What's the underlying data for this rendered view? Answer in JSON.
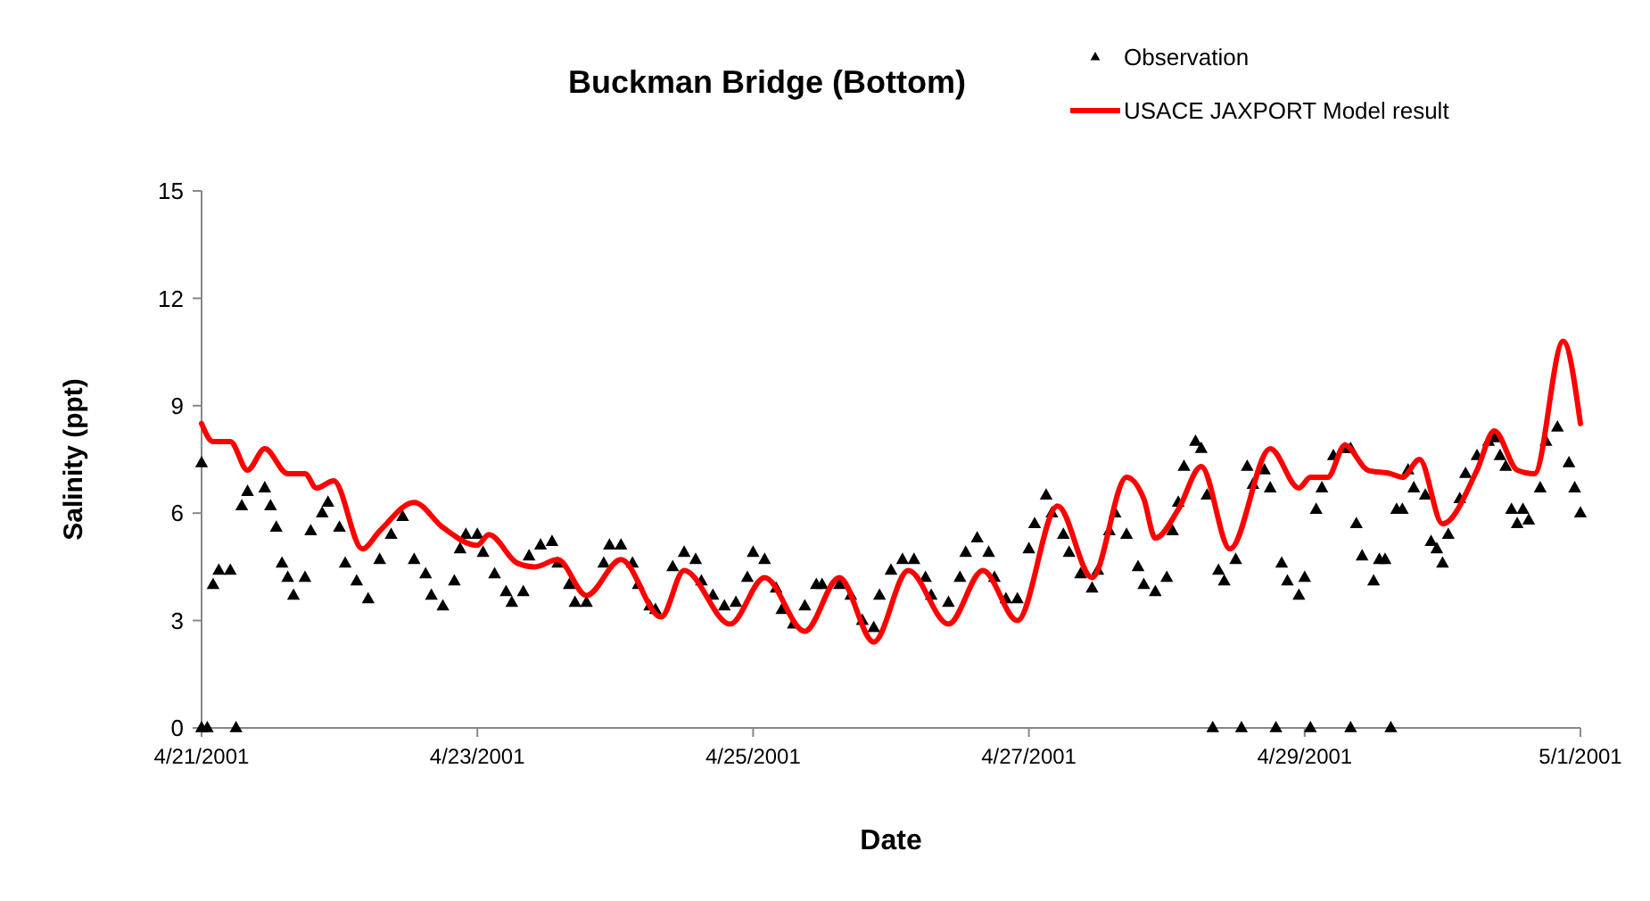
{
  "chart_data": {
    "type": "scatter",
    "title": "Buckman Bridge (Bottom)",
    "xlabel": "Date",
    "ylabel": "Salinity (ppt)",
    "xlim": [
      "2001-04-21T00:00",
      "2001-05-01T00:00"
    ],
    "xticks": [
      {
        "value": "2001-04-21T00:00",
        "label": "4/21/2001"
      },
      {
        "value": "2001-04-23T00:00",
        "label": "4/23/2001"
      },
      {
        "value": "2001-04-25T00:00",
        "label": "4/25/2001"
      },
      {
        "value": "2001-04-27T00:00",
        "label": "4/27/2001"
      },
      {
        "value": "2001-04-29T00:00",
        "label": "4/29/2001"
      },
      {
        "value": "2001-05-01T00:00",
        "label": "5/1/2001"
      }
    ],
    "ylim": [
      0,
      15
    ],
    "yticks": [
      0,
      3,
      6,
      9,
      12,
      15
    ],
    "grid": false,
    "legend": "top right",
    "series": [
      {
        "name": "Observation",
        "marker": "triangle",
        "color": "#000000",
        "x": [
          "2001-04-21T00:00",
          "2001-04-21T00:00",
          "2001-04-21T01:00",
          "2001-04-21T06:00",
          "2001-04-21T02:00",
          "2001-04-21T03:00",
          "2001-04-21T05:00",
          "2001-04-21T07:00",
          "2001-04-21T08:00",
          "2001-04-21T11:00",
          "2001-04-21T12:00",
          "2001-04-21T13:00",
          "2001-04-21T14:00",
          "2001-04-21T15:00",
          "2001-04-21T16:00",
          "2001-04-21T18:00",
          "2001-04-21T19:00",
          "2001-04-21T21:00",
          "2001-04-21T22:00",
          "2001-04-22T00:00",
          "2001-04-22T01:00",
          "2001-04-22T03:00",
          "2001-04-22T05:00",
          "2001-04-22T07:00",
          "2001-04-22T09:00",
          "2001-04-22T11:00",
          "2001-04-22T13:00",
          "2001-04-22T15:00",
          "2001-04-22T16:00",
          "2001-04-22T18:00",
          "2001-04-22T20:00",
          "2001-04-22T21:00",
          "2001-04-22T22:00",
          "2001-04-23T00:00",
          "2001-04-23T01:00",
          "2001-04-23T03:00",
          "2001-04-23T05:00",
          "2001-04-23T06:00",
          "2001-04-23T08:00",
          "2001-04-23T09:00",
          "2001-04-23T11:00",
          "2001-04-23T13:00",
          "2001-04-23T14:00",
          "2001-04-23T16:00",
          "2001-04-23T17:00",
          "2001-04-23T19:00",
          "2001-04-23T22:00",
          "2001-04-23T23:00",
          "2001-04-24T01:00",
          "2001-04-24T03:00",
          "2001-04-24T04:00",
          "2001-04-24T06:00",
          "2001-04-24T07:00",
          "2001-04-24T10:00",
          "2001-04-24T12:00",
          "2001-04-24T14:00",
          "2001-04-24T15:00",
          "2001-04-24T17:00",
          "2001-04-24T19:00",
          "2001-04-24T21:00",
          "2001-04-24T23:00",
          "2001-04-25T00:00",
          "2001-04-25T02:00",
          "2001-04-25T04:00",
          "2001-04-25T05:00",
          "2001-04-25T07:00",
          "2001-04-25T09:00",
          "2001-04-25T11:00",
          "2001-04-25T12:00",
          "2001-04-25T15:00",
          "2001-04-25T17:00",
          "2001-04-25T19:00",
          "2001-04-25T21:00",
          "2001-04-25T22:00",
          "2001-04-26T00:00",
          "2001-04-26T02:00",
          "2001-04-26T04:00",
          "2001-04-26T06:00",
          "2001-04-26T07:00",
          "2001-04-26T10:00",
          "2001-04-26T12:00",
          "2001-04-26T13:00",
          "2001-04-26T15:00",
          "2001-04-26T17:00",
          "2001-04-26T18:00",
          "2001-04-26T20:00",
          "2001-04-26T22:00",
          "2001-04-27T00:00",
          "2001-04-27T01:00",
          "2001-04-27T03:00",
          "2001-04-27T04:00",
          "2001-04-27T06:00",
          "2001-04-27T07:00",
          "2001-04-27T09:00",
          "2001-04-27T11:00",
          "2001-04-27T12:00",
          "2001-04-27T14:00",
          "2001-04-27T15:00",
          "2001-04-27T17:00",
          "2001-04-27T19:00",
          "2001-04-27T20:00",
          "2001-04-27T22:00",
          "2001-04-28T00:00",
          "2001-04-28T01:00",
          "2001-04-28T02:00",
          "2001-04-28T03:00",
          "2001-04-28T05:00",
          "2001-04-28T06:00",
          "2001-04-28T07:00",
          "2001-04-28T08:00",
          "2001-04-28T09:00",
          "2001-04-28T10:00",
          "2001-04-28T12:00",
          "2001-04-28T13:00",
          "2001-04-28T14:00",
          "2001-04-28T15:00",
          "2001-04-28T17:00",
          "2001-04-28T18:00",
          "2001-04-28T19:00",
          "2001-04-28T20:00",
          "2001-04-28T21:00",
          "2001-04-28T23:00",
          "2001-04-29T00:00",
          "2001-04-29T01:00",
          "2001-04-29T02:00",
          "2001-04-29T03:00",
          "2001-04-29T05:00",
          "2001-04-29T07:00",
          "2001-04-29T08:00",
          "2001-04-29T08:00",
          "2001-04-29T09:00",
          "2001-04-29T10:00",
          "2001-04-29T12:00",
          "2001-04-29T13:00",
          "2001-04-29T14:00",
          "2001-04-29T15:00",
          "2001-04-29T16:00",
          "2001-04-29T17:00",
          "2001-04-29T18:00",
          "2001-04-29T19:00",
          "2001-04-29T21:00",
          "2001-04-29T22:00",
          "2001-04-29T23:00",
          "2001-04-30T00:00",
          "2001-04-30T01:00",
          "2001-04-30T03:00",
          "2001-04-30T04:00",
          "2001-04-30T06:00",
          "2001-04-30T08:00",
          "2001-04-30T09:00",
          "2001-04-30T10:00",
          "2001-04-30T11:00",
          "2001-04-30T12:00",
          "2001-04-30T13:00",
          "2001-04-30T14:00",
          "2001-04-30T15:00",
          "2001-04-30T17:00",
          "2001-04-30T18:00",
          "2001-04-30T20:00",
          "2001-04-30T22:00",
          "2001-04-30T23:00",
          "2001-05-01T00:00"
        ],
        "values": [
          7.4,
          0,
          0,
          0,
          4.0,
          4.4,
          4.4,
          6.2,
          6.6,
          6.7,
          6.2,
          5.6,
          4.6,
          4.2,
          3.7,
          4.2,
          5.5,
          6.0,
          6.3,
          5.6,
          4.6,
          4.1,
          3.6,
          4.7,
          5.4,
          5.9,
          4.7,
          4.3,
          3.7,
          3.4,
          4.1,
          5.0,
          5.4,
          5.4,
          4.9,
          4.3,
          3.8,
          3.5,
          3.8,
          4.8,
          5.1,
          5.2,
          4.6,
          4.0,
          3.5,
          3.5,
          4.6,
          5.1,
          5.1,
          4.6,
          4.0,
          3.4,
          3.3,
          4.5,
          4.9,
          4.7,
          4.1,
          3.7,
          3.4,
          3.5,
          4.2,
          4.9,
          4.7,
          3.9,
          3.3,
          2.9,
          3.4,
          4.0,
          4.0,
          4.0,
          3.7,
          3.0,
          2.8,
          3.7,
          4.4,
          4.7,
          4.7,
          4.2,
          3.7,
          3.5,
          4.2,
          4.9,
          5.3,
          4.9,
          4.2,
          3.6,
          3.6,
          5.0,
          5.7,
          6.5,
          6.0,
          5.4,
          4.9,
          4.3,
          3.9,
          4.4,
          5.5,
          6.0,
          5.4,
          4.5,
          4.0,
          3.8,
          4.2,
          5.5,
          6.3,
          7.3,
          8.0,
          7.8,
          6.5,
          0,
          4.4,
          4.1,
          4.7,
          0,
          7.3,
          6.8,
          7.2,
          6.7,
          0,
          4.6,
          4.1,
          3.7,
          4.2,
          0,
          6.1,
          6.7,
          7.6,
          7.8,
          7.8,
          0,
          5.7,
          4.8,
          4.1,
          4.7,
          4.7,
          0,
          6.1,
          6.1,
          7.2,
          6.7,
          6.5,
          5.2,
          5.0,
          4.6,
          5.4,
          6.4,
          7.1,
          7.6,
          8.0,
          8.1,
          7.6,
          7.3,
          6.1,
          5.7,
          6.1,
          5.8,
          6.7,
          8.0,
          8.4,
          7.4,
          6.7,
          6.0
        ]
      },
      {
        "name": "USACE JAXPORT Model result",
        "type": "line",
        "color": "#ff0000",
        "line_style": "solid",
        "x": [
          "2001-04-21T00:00",
          "2001-04-21T02:00",
          "2001-04-21T05:00",
          "2001-04-21T08:00",
          "2001-04-21T11:00",
          "2001-04-21T15:00",
          "2001-04-21T18:00",
          "2001-04-21T20:00",
          "2001-04-21T23:00",
          "2001-04-22T04:00",
          "2001-04-22T07:00",
          "2001-04-22T13:00",
          "2001-04-22T18:00",
          "2001-04-23T00:00",
          "2001-04-23T02:00",
          "2001-04-23T07:00",
          "2001-04-23T10:00",
          "2001-04-23T14:00",
          "2001-04-23T19:00",
          "2001-04-24T01:00",
          "2001-04-24T08:00",
          "2001-04-24T12:00",
          "2001-04-24T20:00",
          "2001-04-25T02:00",
          "2001-04-25T09:00",
          "2001-04-25T15:00",
          "2001-04-25T21:00",
          "2001-04-26T03:00",
          "2001-04-26T10:00",
          "2001-04-26T16:00",
          "2001-04-26T22:00",
          "2001-04-27T05:00",
          "2001-04-27T11:00",
          "2001-04-27T17:00",
          "2001-04-27T20:00",
          "2001-04-27T22:00",
          "2001-04-28T02:00",
          "2001-04-28T06:00",
          "2001-04-28T11:00",
          "2001-04-28T18:00",
          "2001-04-28T23:00",
          "2001-04-29T01:00",
          "2001-04-29T04:00",
          "2001-04-29T07:00",
          "2001-04-29T11:00",
          "2001-04-29T15:00",
          "2001-04-29T17:00",
          "2001-04-29T20:00",
          "2001-04-30T00:00",
          "2001-04-30T06:00",
          "2001-04-30T09:00",
          "2001-04-30T13:00",
          "2001-04-30T16:00",
          "2001-04-30T21:00",
          "2001-05-01T00:00"
        ],
        "values": [
          8.5,
          8.0,
          8.0,
          7.2,
          7.8,
          7.1,
          7.1,
          6.7,
          6.9,
          5.0,
          5.5,
          6.3,
          5.6,
          5.1,
          5.4,
          4.6,
          4.5,
          4.7,
          3.7,
          4.7,
          3.1,
          4.4,
          2.9,
          4.2,
          2.7,
          4.2,
          2.4,
          4.4,
          2.9,
          4.4,
          3.0,
          6.2,
          4.2,
          7.0,
          6.4,
          5.3,
          6.1,
          7.3,
          5.0,
          7.8,
          6.7,
          7.0,
          7.0,
          7.9,
          7.2,
          7.1,
          7.0,
          7.5,
          5.7,
          7.2,
          8.3,
          7.2,
          7.1,
          10.8,
          8.5
        ]
      }
    ]
  }
}
